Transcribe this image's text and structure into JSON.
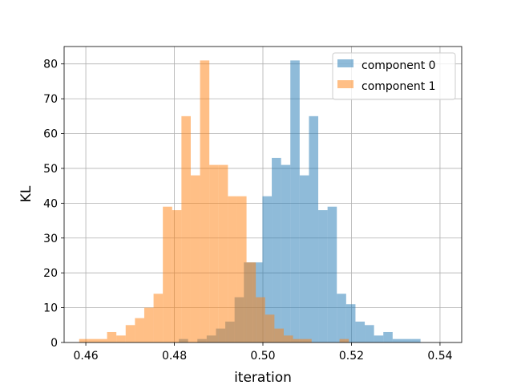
{
  "chart_data": {
    "type": "histogram",
    "title": "",
    "xlabel": "iteration",
    "ylabel": "KL",
    "xlim": [
      0.4551,
      0.5449
    ],
    "ylim": [
      0,
      85
    ],
    "x_ticks": [
      "0.46",
      "0.48",
      "0.50",
      "0.52",
      "0.54"
    ],
    "y_ticks": [
      "0",
      "10",
      "20",
      "30",
      "40",
      "50",
      "60",
      "70",
      "80"
    ],
    "grid": true,
    "legend_position": "top-right",
    "bin_width": 0.0021,
    "alpha": 0.5,
    "series": [
      {
        "name": "component 0",
        "color": "#1f77b4",
        "bin_starts": [
          0.481,
          0.4831,
          0.4852,
          0.4873,
          0.4894,
          0.4915,
          0.4936,
          0.4957,
          0.4978,
          0.4999,
          0.502,
          0.5041,
          0.5062,
          0.5083,
          0.5104,
          0.5125,
          0.5146,
          0.5167,
          0.5188,
          0.5209,
          0.523,
          0.5251,
          0.5272,
          0.5293,
          0.5314,
          0.5335,
          0.5356,
          0.5377,
          0.5398
        ],
        "counts": [
          1,
          0,
          1,
          2,
          4,
          6,
          13,
          23,
          23,
          42,
          53,
          51,
          81,
          48,
          65,
          38,
          39,
          14,
          11,
          6,
          5,
          2,
          3,
          1,
          1,
          1,
          0,
          0,
          0
        ]
      },
      {
        "name": "component 1",
        "color": "#ff7f0e",
        "bin_starts": [
          0.4585,
          0.4606,
          0.4627,
          0.4648,
          0.4669,
          0.469,
          0.4711,
          0.4732,
          0.4753,
          0.4774,
          0.4795,
          0.4816,
          0.4837,
          0.4858,
          0.4879,
          0.49,
          0.4921,
          0.4942,
          0.4963,
          0.4984,
          0.5005,
          0.5026,
          0.5047,
          0.5068,
          0.5089,
          0.511,
          0.5131,
          0.5152,
          0.5173,
          0.5194
        ],
        "counts": [
          1,
          1,
          1,
          3,
          2,
          5,
          7,
          10,
          14,
          39,
          38,
          65,
          48,
          81,
          51,
          51,
          42,
          42,
          23,
          13,
          8,
          4,
          2,
          1,
          1,
          0,
          0,
          0,
          1,
          0
        ]
      }
    ]
  }
}
